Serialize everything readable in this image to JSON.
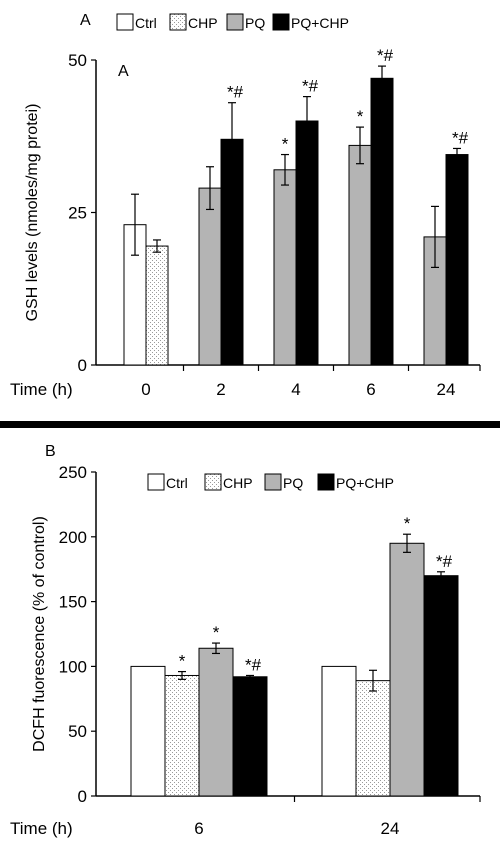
{
  "colors": {
    "Ctrl": "#ffffff",
    "CHP": "#e4e4e4",
    "PQ": "#b4b4b4",
    "PQ+CHP": "#000000",
    "divider": "#000000"
  },
  "chart_data": [
    {
      "panel_label": "A",
      "panel_sublabel": "A",
      "type": "bar",
      "ylabel": "GSH levels (nmoles/mg protei)",
      "xlabel": "Time  (h)",
      "ylim": [
        0,
        50
      ],
      "yticks": [
        "0",
        "25",
        "50"
      ],
      "grid": false,
      "legend": "top",
      "categories": [
        "0",
        "2",
        "4",
        "6",
        "24"
      ],
      "series": [
        {
          "name": "Ctrl",
          "pattern": "none",
          "values": [
            23,
            null,
            null,
            null,
            null
          ],
          "errors": [
            5,
            null,
            null,
            null,
            null
          ],
          "annotations": [
            "",
            "",
            "",
            "",
            ""
          ]
        },
        {
          "name": "CHP",
          "pattern": "dotted",
          "values": [
            19.5,
            null,
            null,
            null,
            null
          ],
          "errors": [
            1,
            null,
            null,
            null,
            null
          ],
          "annotations": [
            "",
            "",
            "",
            "",
            ""
          ]
        },
        {
          "name": "PQ",
          "pattern": "none",
          "values": [
            null,
            29,
            32,
            36,
            21
          ],
          "errors": [
            null,
            3.5,
            2.5,
            3,
            5
          ],
          "annotations": [
            "",
            "",
            "*",
            "*",
            ""
          ]
        },
        {
          "name": "PQ+CHP",
          "pattern": "none",
          "values": [
            null,
            37,
            40,
            47,
            34.5
          ],
          "errors": [
            null,
            6,
            4,
            2,
            1
          ],
          "annotations": [
            "",
            "*#",
            "*#",
            "*#",
            "*#"
          ]
        }
      ]
    },
    {
      "panel_label": "B",
      "type": "bar",
      "ylabel": "DCFH fuorescence (% of control)",
      "xlabel": "Time  (h)",
      "ylim": [
        0,
        250
      ],
      "yticks": [
        "0",
        "50",
        "100",
        "150",
        "200",
        "250"
      ],
      "grid": false,
      "legend": "top",
      "categories": [
        "6",
        "24"
      ],
      "series": [
        {
          "name": "Ctrl",
          "pattern": "none",
          "values": [
            100,
            100
          ],
          "errors": [
            0,
            0
          ],
          "annotations": [
            "",
            ""
          ]
        },
        {
          "name": "CHP",
          "pattern": "dotted",
          "values": [
            93,
            89
          ],
          "errors": [
            3,
            8
          ],
          "annotations": [
            "*",
            ""
          ]
        },
        {
          "name": "PQ",
          "pattern": "none",
          "values": [
            114,
            195
          ],
          "errors": [
            4,
            7
          ],
          "annotations": [
            "*",
            "*"
          ]
        },
        {
          "name": "PQ+CHP",
          "pattern": "none",
          "values": [
            92,
            170
          ],
          "errors": [
            1,
            3
          ],
          "annotations": [
            "*#",
            "*#"
          ]
        }
      ]
    }
  ]
}
